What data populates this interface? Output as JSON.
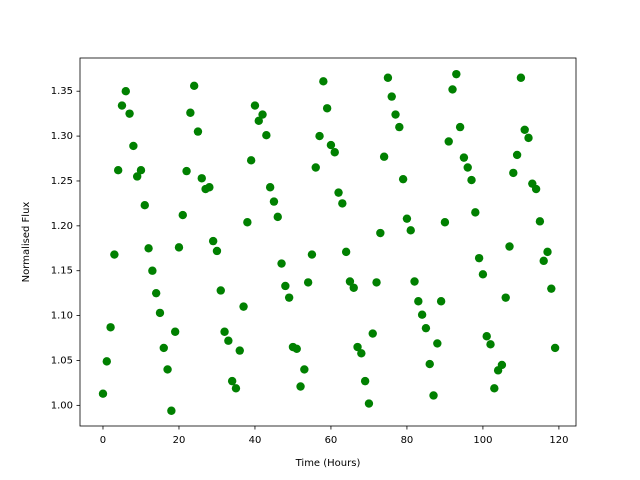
{
  "chart_data": {
    "type": "scatter",
    "xlabel": "Time (Hours)",
    "ylabel": "Normalised Flux",
    "color": "#008000",
    "x": [
      0,
      1,
      2,
      3,
      4,
      5,
      6,
      7,
      8,
      9,
      10,
      11,
      12,
      13,
      14,
      15,
      16,
      17,
      18,
      19,
      20,
      21,
      22,
      23,
      24,
      25,
      26,
      27,
      28,
      29,
      30,
      31,
      32,
      33,
      34,
      35,
      36,
      37,
      38,
      39,
      40,
      41,
      42,
      43,
      44,
      45,
      46,
      47,
      48,
      49,
      50,
      51,
      52,
      53,
      54,
      55,
      56,
      57,
      58,
      59,
      60,
      61,
      62,
      63,
      64,
      65,
      66,
      67,
      68,
      69,
      70,
      71,
      72,
      73,
      74,
      75,
      76,
      77,
      78,
      79,
      80,
      81,
      82,
      83,
      84,
      85,
      86,
      87,
      88,
      89,
      90,
      91,
      92,
      93,
      94,
      95,
      96,
      97,
      98,
      99,
      100,
      101,
      102,
      103,
      104,
      105,
      106,
      107,
      108,
      109,
      110,
      111,
      112,
      113,
      114,
      115,
      116,
      117,
      118,
      119
    ],
    "values": [
      1.013,
      1.049,
      1.087,
      1.168,
      1.262,
      1.334,
      1.35,
      1.325,
      1.289,
      1.255,
      1.262,
      1.223,
      1.175,
      1.15,
      1.125,
      1.103,
      1.064,
      1.04,
      0.994,
      1.082,
      1.176,
      1.212,
      1.261,
      1.326,
      1.356,
      1.305,
      1.253,
      1.241,
      1.243,
      1.183,
      1.172,
      1.128,
      1.082,
      1.072,
      1.027,
      1.019,
      1.061,
      1.11,
      1.204,
      1.273,
      1.334,
      1.317,
      1.324,
      1.301,
      1.243,
      1.227,
      1.21,
      1.158,
      1.133,
      1.12,
      1.065,
      1.063,
      1.021,
      1.04,
      1.137,
      1.168,
      1.265,
      1.3,
      1.361,
      1.331,
      1.29,
      1.282,
      1.237,
      1.225,
      1.171,
      1.138,
      1.131,
      1.065,
      1.058,
      1.027,
      1.002,
      1.08,
      1.137,
      1.192,
      1.277,
      1.365,
      1.344,
      1.324,
      1.31,
      1.252,
      1.208,
      1.195,
      1.138,
      1.116,
      1.101,
      1.086,
      1.046,
      1.011,
      1.069,
      1.116,
      1.204,
      1.294,
      1.352,
      1.369,
      1.31,
      1.276,
      1.265,
      1.251,
      1.215,
      1.164,
      1.146,
      1.077,
      1.068,
      1.019,
      1.039,
      1.045,
      1.12,
      1.177,
      1.259,
      1.279,
      1.365,
      1.307,
      1.298,
      1.247,
      1.241,
      1.205,
      1.161,
      1.171,
      1.13,
      1.064
    ],
    "xlim": [
      -6.05,
      124.5
    ],
    "xticks": [
      0,
      20,
      40,
      60,
      80,
      100,
      120
    ],
    "ylim": [
      0.977,
      1.387
    ],
    "yticks": [
      {
        "value": 1.0,
        "label": "1.00"
      },
      {
        "value": 1.05,
        "label": "1.05"
      },
      {
        "value": 1.1,
        "label": "1.10"
      },
      {
        "value": 1.15,
        "label": "1.15"
      },
      {
        "value": 1.2,
        "label": "1.20"
      },
      {
        "value": 1.25,
        "label": "1.25"
      },
      {
        "value": 1.3,
        "label": "1.30"
      },
      {
        "value": 1.35,
        "label": "1.35"
      }
    ]
  }
}
